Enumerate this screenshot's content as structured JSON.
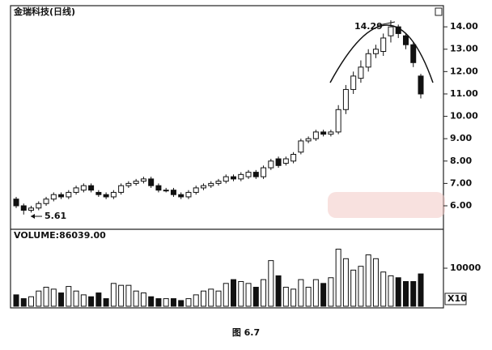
{
  "chart_data": {
    "type": "candlestick",
    "title": "金瑞科技(日线)",
    "caption": "图 6.7",
    "annotations": [
      "14.29",
      "5.61"
    ],
    "volume_label": "VOLUME:86039.00",
    "volume_unit": "X10",
    "open": [
      6.3,
      6.0,
      5.8,
      5.9,
      6.1,
      6.3,
      6.5,
      6.4,
      6.6,
      6.7,
      6.9,
      6.6,
      6.5,
      6.4,
      6.6,
      6.9,
      7.0,
      7.1,
      7.2,
      6.9,
      6.7,
      6.7,
      6.5,
      6.4,
      6.6,
      6.8,
      6.9,
      7.0,
      7.1,
      7.3,
      7.2,
      7.3,
      7.5,
      7.3,
      7.7,
      8.1,
      7.9,
      8.0,
      8.4,
      8.9,
      9.0,
      9.3,
      9.2,
      9.3,
      10.3,
      11.2,
      11.7,
      12.2,
      12.8,
      12.9,
      13.6,
      14.0,
      13.6,
      13.2,
      11.8
    ],
    "high": [
      6.4,
      6.1,
      6.0,
      6.2,
      6.4,
      6.6,
      6.6,
      6.7,
      6.9,
      7.0,
      7.0,
      6.7,
      6.6,
      6.7,
      7.0,
      7.1,
      7.2,
      7.3,
      7.3,
      7.0,
      6.8,
      6.8,
      6.6,
      6.7,
      6.9,
      7.0,
      7.1,
      7.2,
      7.4,
      7.4,
      7.5,
      7.6,
      7.6,
      7.8,
      8.1,
      8.2,
      8.2,
      8.4,
      9.0,
      9.1,
      9.4,
      9.4,
      9.4,
      10.5,
      11.4,
      12.0,
      12.5,
      13.0,
      13.2,
      13.7,
      14.29,
      14.1,
      13.7,
      13.3,
      11.9
    ],
    "low": [
      5.9,
      5.61,
      5.7,
      5.8,
      6.0,
      6.2,
      6.3,
      6.3,
      6.5,
      6.6,
      6.6,
      6.4,
      6.3,
      6.3,
      6.5,
      6.8,
      6.9,
      7.0,
      6.8,
      6.6,
      6.6,
      6.4,
      6.3,
      6.3,
      6.5,
      6.7,
      6.8,
      6.9,
      7.0,
      7.1,
      7.1,
      7.2,
      7.2,
      7.2,
      7.6,
      7.7,
      7.8,
      7.9,
      8.3,
      8.8,
      8.9,
      9.1,
      9.1,
      9.2,
      10.1,
      11.0,
      11.5,
      12.0,
      12.6,
      12.7,
      13.3,
      13.5,
      13.0,
      12.2,
      10.8
    ],
    "close": [
      6.0,
      5.8,
      5.9,
      6.1,
      6.3,
      6.5,
      6.4,
      6.6,
      6.8,
      6.9,
      6.7,
      6.5,
      6.4,
      6.6,
      6.9,
      7.0,
      7.1,
      7.2,
      6.9,
      6.7,
      6.7,
      6.5,
      6.4,
      6.6,
      6.8,
      6.9,
      7.0,
      7.1,
      7.3,
      7.2,
      7.4,
      7.5,
      7.3,
      7.7,
      8.0,
      7.8,
      8.1,
      8.3,
      8.9,
      9.0,
      9.3,
      9.2,
      9.3,
      10.3,
      11.2,
      11.8,
      12.2,
      12.8,
      13.0,
      13.5,
      14.0,
      13.7,
      13.2,
      12.4,
      11.0
    ],
    "volume": [
      3000,
      2000,
      2500,
      4000,
      5000,
      4500,
      3500,
      5200,
      4000,
      3000,
      2500,
      3500,
      2000,
      6000,
      5500,
      5500,
      4000,
      3500,
      2500,
      2000,
      2000,
      2000,
      1500,
      2000,
      3000,
      4000,
      4500,
      4000,
      6000,
      7000,
      6500,
      6000,
      5000,
      7000,
      12000,
      8000,
      5000,
      4500,
      7000,
      5000,
      7000,
      6000,
      7500,
      15000,
      12500,
      9500,
      10500,
      13500,
      12500,
      9000,
      8000,
      7500,
      6500,
      6500,
      8500
    ],
    "up_color": "#ffffff",
    "down_color": "#111111",
    "ylim": [
      4.95,
      14.91
    ],
    "yticks": [
      {
        "value": 6,
        "label": "6.00"
      },
      {
        "value": 7,
        "label": "7.00"
      },
      {
        "value": 8,
        "label": "8.00"
      },
      {
        "value": 9,
        "label": "9.00"
      },
      {
        "value": 10,
        "label": "10.00"
      },
      {
        "value": 11,
        "label": "11.00"
      },
      {
        "value": 12,
        "label": "12.00"
      },
      {
        "value": 13,
        "label": "13.00"
      },
      {
        "value": 14,
        "label": "14.00"
      }
    ],
    "y2lim": [
      0,
      19800
    ],
    "y2ticks": [
      10000
    ]
  }
}
